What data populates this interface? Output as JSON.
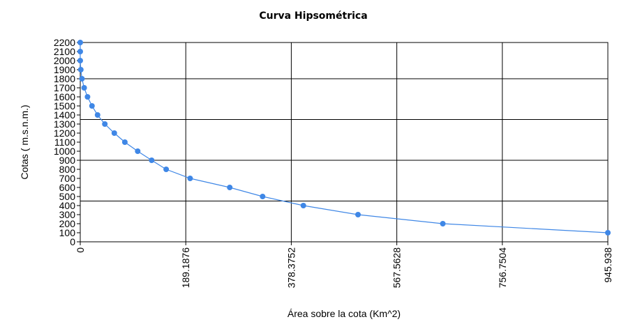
{
  "chart_data": {
    "type": "line",
    "title": "Curva Hipsométrica",
    "xlabel": "Área sobre la cota (Km^2)",
    "ylabel": "Cotas ( m.s.n.m.)",
    "xlim": [
      0,
      945.938
    ],
    "ylim": [
      0,
      2200
    ],
    "x_ticks": [
      "0",
      "189.1876",
      "378.3752",
      "567.5628",
      "756.7504",
      "945.938"
    ],
    "x_tick_values": [
      0,
      189.1876,
      378.3752,
      567.5628,
      756.7504,
      945.938
    ],
    "x_grid_values": [
      189.1876,
      378.3752,
      567.5628,
      756.7504
    ],
    "y_ticks": [
      "0",
      "100",
      "200",
      "300",
      "400",
      "500",
      "600",
      "700",
      "800",
      "900",
      "1000",
      "1100",
      "1200",
      "1300",
      "1400",
      "1500",
      "1600",
      "1700",
      "1800",
      "1900",
      "2000",
      "2100",
      "2200"
    ],
    "y_grid_values": [
      450,
      900,
      1350,
      1800
    ],
    "grid": true,
    "legend": "none",
    "color": "#3f87e6",
    "marker": "circle",
    "series": [
      {
        "x": [
          0,
          0,
          0,
          1,
          3,
          7,
          13,
          21,
          31,
          44,
          61,
          80,
          103,
          128,
          154,
          197,
          268,
          327,
          400,
          498,
          650,
          945.938
        ],
        "y": [
          2200,
          2100,
          2000,
          1900,
          1800,
          1700,
          1600,
          1500,
          1400,
          1300,
          1200,
          1100,
          1000,
          900,
          800,
          700,
          600,
          500,
          400,
          300,
          200,
          100
        ]
      }
    ]
  }
}
